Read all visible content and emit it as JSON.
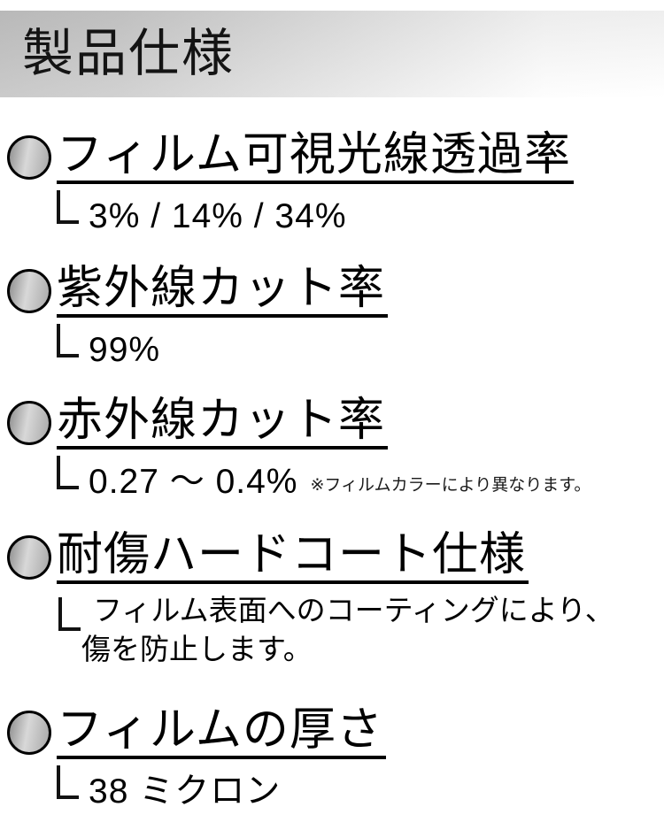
{
  "header": {
    "title": "製品仕様"
  },
  "colors": {
    "band_gradient_left": "#c3c3c3",
    "band_gradient_right": "#ffffff",
    "bullet_fill_start": "#8d8d8d",
    "bullet_fill_mid": "#d8d8d8",
    "bullet_fill_end": "#a8a8a8",
    "text": "#000000"
  },
  "icons": {
    "bullet": "gradient-circle-icon",
    "connector": "l-connector-icon"
  },
  "sections": [
    {
      "heading": "フィルム可視光線透過率",
      "value": "3% / 14% / 34%"
    },
    {
      "heading": "紫外線カット率",
      "value": "99%"
    },
    {
      "heading": "赤外線カット率",
      "value": "0.27 〜 0.4%",
      "note": "※フィルムカラーにより異なります。"
    },
    {
      "heading": "耐傷ハードコート仕様",
      "value_lines": [
        "フィルム表面へのコーティングにより、",
        "傷を防止します。"
      ]
    },
    {
      "heading": "フィルムの厚さ",
      "value": "38 ミクロン"
    }
  ]
}
